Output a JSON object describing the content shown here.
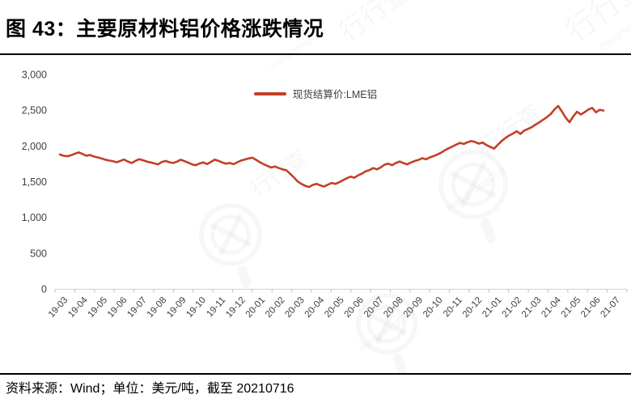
{
  "title": "图 43：主要原材料铝价格涨跌情况",
  "legend": {
    "label": "现货结算价:LME铝",
    "color": "#C33F28"
  },
  "footer": {
    "text": "资料来源：Wind；单位：美元/吨，截至 20210716"
  },
  "watermark": {
    "cn": "行行查",
    "en": "HangHangCha"
  },
  "chart_data": {
    "type": "line",
    "title": "主要原材料铝价格涨跌情况",
    "xlabel": "",
    "ylabel": "",
    "unit": "美元/吨",
    "as_of": "20210716",
    "source": "Wind",
    "grid": false,
    "legend_position": "top-center",
    "ylim": [
      0,
      3000
    ],
    "y_ticks": [
      3000,
      2500,
      2000,
      1500,
      1000,
      500,
      0
    ],
    "y_tick_labels": [
      "3,000",
      "2,500",
      "2,000",
      "1,500",
      "1,000",
      "500",
      "0"
    ],
    "x_tick_labels": [
      "19-03",
      "19-04",
      "19-05",
      "19-06",
      "19-07",
      "19-08",
      "19-09",
      "19-10",
      "19-11",
      "19-12",
      "20-01",
      "20-02",
      "20-03",
      "20-04",
      "20-05",
      "20-06",
      "20-07",
      "20-08",
      "20-09",
      "20-10",
      "20-11",
      "20-12",
      "21-01",
      "21-02",
      "21-03",
      "21-04",
      "21-05",
      "21-06",
      "21-07"
    ],
    "series": [
      {
        "name": "现货结算价:LME铝",
        "color": "#C33F28",
        "values": [
          1880,
          1862,
          1856,
          1870,
          1892,
          1910,
          1888,
          1862,
          1874,
          1852,
          1840,
          1826,
          1808,
          1796,
          1788,
          1772,
          1790,
          1810,
          1782,
          1760,
          1790,
          1815,
          1800,
          1782,
          1770,
          1756,
          1742,
          1775,
          1790,
          1772,
          1762,
          1780,
          1808,
          1788,
          1766,
          1742,
          1730,
          1755,
          1770,
          1746,
          1776,
          1808,
          1792,
          1768,
          1752,
          1762,
          1745,
          1772,
          1795,
          1810,
          1825,
          1835,
          1805,
          1772,
          1745,
          1720,
          1698,
          1712,
          1690,
          1672,
          1660,
          1610,
          1560,
          1502,
          1468,
          1442,
          1425,
          1455,
          1470,
          1448,
          1432,
          1458,
          1482,
          1470,
          1492,
          1520,
          1548,
          1570,
          1556,
          1588,
          1612,
          1645,
          1662,
          1690,
          1672,
          1700,
          1738,
          1752,
          1730,
          1762,
          1782,
          1760,
          1742,
          1768,
          1790,
          1805,
          1828,
          1812,
          1840,
          1858,
          1880,
          1905,
          1940,
          1968,
          1992,
          2018,
          2042,
          2028,
          2052,
          2068,
          2055,
          2032,
          2048,
          2012,
          1988,
          1962,
          2015,
          2068,
          2110,
          2145,
          2172,
          2205,
          2168,
          2215,
          2238,
          2262,
          2298,
          2330,
          2365,
          2402,
          2445,
          2510,
          2558,
          2480,
          2395,
          2332,
          2415,
          2478,
          2440,
          2472,
          2510,
          2532,
          2470,
          2505,
          2495
        ]
      }
    ]
  }
}
